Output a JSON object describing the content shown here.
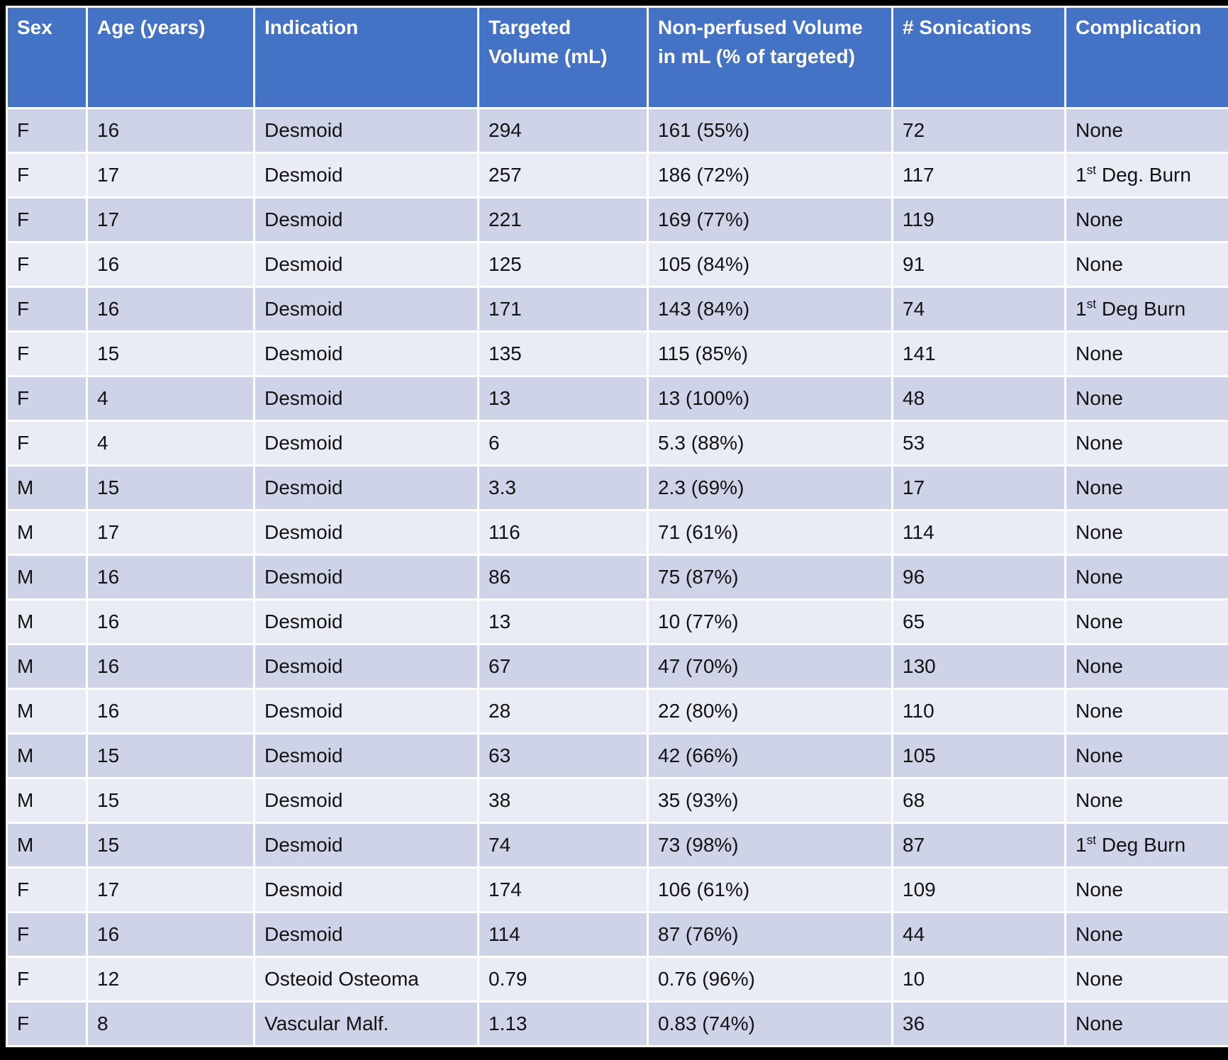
{
  "table": {
    "columns": [
      {
        "key": "sex",
        "label": "Sex"
      },
      {
        "key": "age",
        "label": "Age (years)"
      },
      {
        "key": "indication",
        "label": "Indication"
      },
      {
        "key": "targeted_volume",
        "label": "Targeted Volume (mL)"
      },
      {
        "key": "non_perfused",
        "label": "Non-perfused Volume in mL (% of targeted)"
      },
      {
        "key": "sonications",
        "label": "# Sonications"
      },
      {
        "key": "complication",
        "label": "Complication"
      }
    ],
    "rows": [
      [
        "F",
        "16",
        "Desmoid",
        "294",
        "161 (55%)",
        "72",
        "None"
      ],
      [
        "F",
        "17",
        "Desmoid",
        "257",
        "186 (72%)",
        "117",
        "1st Deg. Burn"
      ],
      [
        "F",
        "17",
        "Desmoid",
        "221",
        "169 (77%)",
        "119",
        "None"
      ],
      [
        "F",
        "16",
        "Desmoid",
        "125",
        "105 (84%)",
        "91",
        "None"
      ],
      [
        "F",
        "16",
        "Desmoid",
        "171",
        "143 (84%)",
        "74",
        "1st Deg Burn"
      ],
      [
        "F",
        "15",
        "Desmoid",
        "135",
        "115 (85%)",
        "141",
        "None"
      ],
      [
        "F",
        "4",
        "Desmoid",
        "13",
        "13 (100%)",
        "48",
        "None"
      ],
      [
        "F",
        "4",
        "Desmoid",
        "6",
        "5.3 (88%)",
        "53",
        "None"
      ],
      [
        "M",
        "15",
        "Desmoid",
        "3.3",
        "2.3 (69%)",
        "17",
        "None"
      ],
      [
        "M",
        "17",
        "Desmoid",
        "116",
        "71 (61%)",
        "114",
        "None"
      ],
      [
        "M",
        "16",
        "Desmoid",
        "86",
        "75 (87%)",
        "96",
        "None"
      ],
      [
        "M",
        "16",
        "Desmoid",
        "13",
        "10 (77%)",
        "65",
        "None"
      ],
      [
        "M",
        "16",
        "Desmoid",
        "67",
        "47 (70%)",
        "130",
        "None"
      ],
      [
        "M",
        "16",
        "Desmoid",
        "28",
        "22 (80%)",
        "110",
        "None"
      ],
      [
        "M",
        "15",
        "Desmoid",
        "63",
        "42 (66%)",
        "105",
        "None"
      ],
      [
        "M",
        "15",
        "Desmoid",
        "38",
        "35 (93%)",
        "68",
        "None"
      ],
      [
        "M",
        "15",
        "Desmoid",
        "74",
        "73 (98%)",
        "87",
        "1st Deg Burn"
      ],
      [
        "F",
        "17",
        "Desmoid",
        "174",
        "106 (61%)",
        "109",
        "None"
      ],
      [
        "F",
        "16",
        "Desmoid",
        "114",
        "87 (76%)",
        "44",
        "None"
      ],
      [
        "F",
        "12",
        "Osteoid Osteoma",
        "0.79",
        "0.76 (96%)",
        "10",
        "None"
      ],
      [
        "F",
        "8",
        "Vascular Malf.",
        "1.13",
        "0.83 (74%)",
        "36",
        "None"
      ]
    ]
  },
  "colors": {
    "header_bg": "#4472C4",
    "header_text": "#FFFFFF",
    "row_odd_bg": "#CFD3E7",
    "row_even_bg": "#E9EBF5",
    "separator": "#FFFFFF",
    "page_bg": "#000000",
    "body_text": "#131313"
  }
}
